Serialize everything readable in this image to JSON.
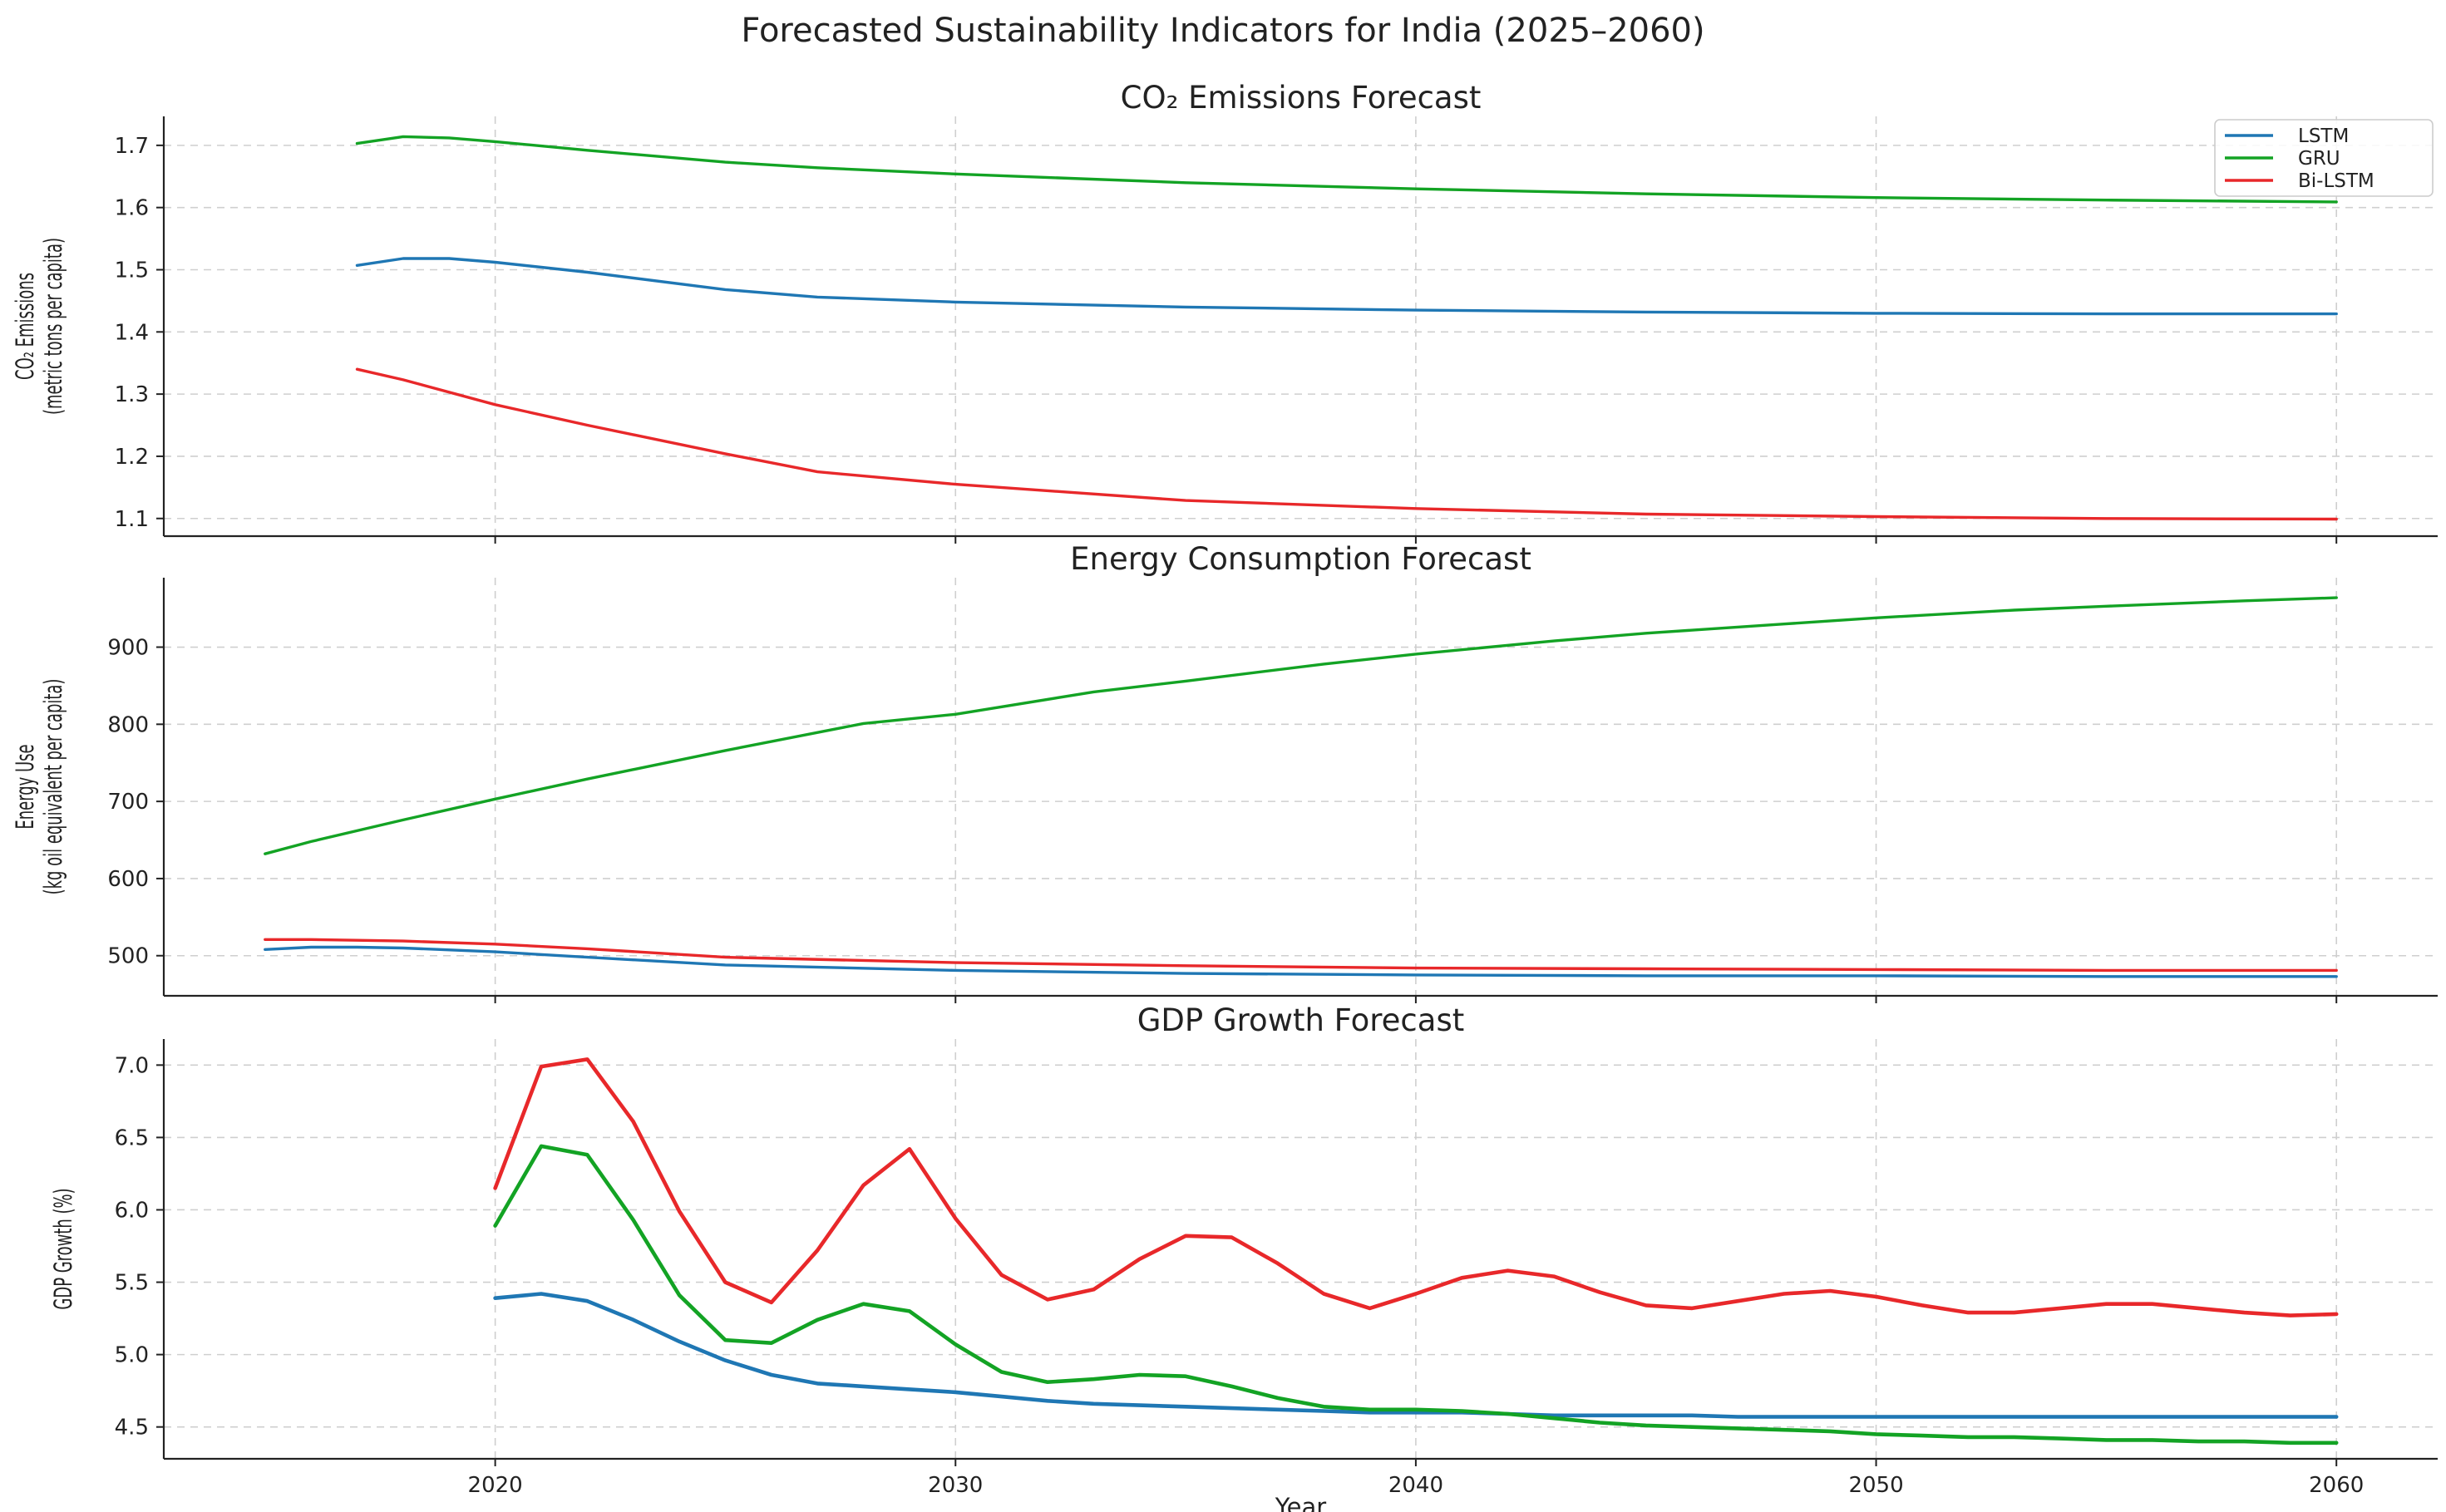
{
  "suptitle": "Forecasted Sustainability Indicators for India (2025–2060)",
  "colors": {
    "LSTM": "#1f77b4",
    "GRU": "#13a324",
    "Bi-LSTM": "#e8282a"
  },
  "chart_data": [
    {
      "type": "line",
      "title": "CO₂ Emissions Forecast",
      "ylabel": [
        "CO₂ Emissions",
        "(metric tons per capita)"
      ],
      "xlabel": "",
      "xlim": [
        2012.8,
        2062.2
      ],
      "ylim": [
        1.0716,
        1.7466
      ],
      "yticks": [
        1.1,
        1.2,
        1.3,
        1.4,
        1.5,
        1.6,
        1.7
      ],
      "ytick_labels": [
        "1.1",
        "1.2",
        "1.3",
        "1.4",
        "1.5",
        "1.6",
        "1.7"
      ],
      "xticks": [
        2020,
        2030,
        2040,
        2050,
        2060
      ],
      "xtick_labels": [
        "2020",
        "2030",
        "2040",
        "2050",
        "2060"
      ],
      "show_x_tick_labels": false,
      "grid": true,
      "legend": {
        "position": "top-right",
        "entries": [
          "LSTM",
          "GRU",
          "Bi-LSTM"
        ]
      },
      "series": [
        {
          "name": "LSTM",
          "x": [
            2017,
            2018,
            2019,
            2020,
            2022,
            2025,
            2027,
            2030,
            2035,
            2040,
            2045,
            2050,
            2055,
            2060
          ],
          "values": [
            1.507,
            1.518,
            1.518,
            1.512,
            1.496,
            1.468,
            1.456,
            1.448,
            1.44,
            1.435,
            1.432,
            1.43,
            1.429,
            1.429
          ]
        },
        {
          "name": "GRU",
          "x": [
            2017,
            2018,
            2019,
            2020,
            2022,
            2025,
            2027,
            2030,
            2035,
            2040,
            2045,
            2050,
            2055,
            2060
          ],
          "values": [
            1.703,
            1.714,
            1.712,
            1.706,
            1.692,
            1.673,
            1.664,
            1.654,
            1.64,
            1.63,
            1.622,
            1.616,
            1.612,
            1.609
          ]
        },
        {
          "name": "Bi-LSTM",
          "x": [
            2017,
            2018,
            2020,
            2022,
            2025,
            2027,
            2030,
            2035,
            2040,
            2045,
            2050,
            2055,
            2060
          ],
          "values": [
            1.34,
            1.323,
            1.283,
            1.25,
            1.204,
            1.175,
            1.155,
            1.129,
            1.116,
            1.107,
            1.103,
            1.1,
            1.099
          ]
        }
      ]
    },
    {
      "type": "line",
      "title": "Energy Consumption Forecast",
      "ylabel": [
        "Energy Use",
        "(kg oil equivalent per capita)"
      ],
      "xlabel": "",
      "xlim": [
        2012.8,
        2062.2
      ],
      "ylim": [
        448,
        990
      ],
      "yticks": [
        500,
        600,
        700,
        800,
        900
      ],
      "ytick_labels": [
        "500",
        "600",
        "700",
        "800",
        "900"
      ],
      "xticks": [
        2020,
        2030,
        2040,
        2050,
        2060
      ],
      "xtick_labels": [
        "2020",
        "2030",
        "2040",
        "2050",
        "2060"
      ],
      "show_x_tick_labels": false,
      "grid": true,
      "series": [
        {
          "name": "LSTM",
          "x": [
            2015,
            2016,
            2017,
            2018,
            2020,
            2022,
            2025,
            2030,
            2035,
            2040,
            2045,
            2050,
            2055,
            2060
          ],
          "values": [
            508,
            511,
            511,
            510,
            505,
            498,
            488,
            481,
            477,
            475,
            474,
            474,
            473,
            473
          ]
        },
        {
          "name": "GRU",
          "x": [
            2015,
            2016,
            2018,
            2020,
            2022,
            2025,
            2028,
            2030,
            2033,
            2035,
            2038,
            2040,
            2043,
            2045,
            2048,
            2050,
            2053,
            2055,
            2058,
            2060
          ],
          "values": [
            632,
            648,
            676,
            703,
            729,
            766,
            801,
            813,
            842,
            856,
            878,
            891,
            908,
            918,
            930,
            938,
            948,
            953,
            960,
            964
          ]
        },
        {
          "name": "Bi-LSTM",
          "x": [
            2015,
            2016,
            2017,
            2018,
            2020,
            2022,
            2025,
            2030,
            2035,
            2040,
            2045,
            2050,
            2055,
            2060
          ],
          "values": [
            521,
            521,
            520,
            519,
            515,
            509,
            498,
            491,
            487,
            484,
            483,
            482,
            481,
            481
          ]
        }
      ]
    },
    {
      "type": "line",
      "title": "GDP Growth Forecast",
      "ylabel": [
        "GDP Growth (%)"
      ],
      "xlabel": "Year",
      "xlim": [
        2012.8,
        2062.2
      ],
      "ylim": [
        4.28,
        7.18
      ],
      "yticks": [
        4.5,
        5.0,
        5.5,
        6.0,
        6.5,
        7.0
      ],
      "ytick_labels": [
        "4.5",
        "5.0",
        "5.5",
        "6.0",
        "6.5",
        "7.0"
      ],
      "xticks": [
        2020,
        2030,
        2040,
        2050,
        2060
      ],
      "xtick_labels": [
        "2020",
        "2030",
        "2040",
        "2050",
        "2060"
      ],
      "show_x_tick_labels": true,
      "grid": true,
      "series": [
        {
          "name": "LSTM",
          "x": [
            2020,
            2021,
            2022,
            2023,
            2024,
            2025,
            2026,
            2027,
            2028,
            2029,
            2030,
            2031,
            2032,
            2033,
            2034,
            2035,
            2036,
            2037,
            2038,
            2039,
            2040,
            2041,
            2042,
            2043,
            2044,
            2045,
            2046,
            2047,
            2048,
            2049,
            2050,
            2051,
            2052,
            2053,
            2054,
            2055,
            2056,
            2057,
            2058,
            2059,
            2060
          ],
          "values": [
            5.39,
            5.42,
            5.37,
            5.24,
            5.09,
            4.96,
            4.86,
            4.8,
            4.78,
            4.76,
            4.74,
            4.71,
            4.68,
            4.66,
            4.65,
            4.64,
            4.63,
            4.62,
            4.61,
            4.6,
            4.6,
            4.6,
            4.59,
            4.58,
            4.58,
            4.58,
            4.58,
            4.57,
            4.57,
            4.57,
            4.57,
            4.57,
            4.57,
            4.57,
            4.57,
            4.57,
            4.57,
            4.57,
            4.57,
            4.57,
            4.57
          ]
        },
        {
          "name": "GRU",
          "x": [
            2020,
            2021,
            2022,
            2023,
            2024,
            2025,
            2026,
            2027,
            2028,
            2029,
            2030,
            2031,
            2032,
            2033,
            2034,
            2035,
            2036,
            2037,
            2038,
            2039,
            2040,
            2041,
            2042,
            2043,
            2044,
            2045,
            2046,
            2047,
            2048,
            2049,
            2050,
            2051,
            2052,
            2053,
            2054,
            2055,
            2056,
            2057,
            2058,
            2059,
            2060
          ],
          "values": [
            5.89,
            6.44,
            6.38,
            5.93,
            5.41,
            5.1,
            5.08,
            5.24,
            5.35,
            5.3,
            5.07,
            4.88,
            4.81,
            4.83,
            4.86,
            4.85,
            4.78,
            4.7,
            4.64,
            4.62,
            4.62,
            4.61,
            4.59,
            4.56,
            4.53,
            4.51,
            4.5,
            4.49,
            4.48,
            4.47,
            4.45,
            4.44,
            4.43,
            4.43,
            4.42,
            4.41,
            4.41,
            4.4,
            4.4,
            4.39,
            4.39
          ]
        },
        {
          "name": "Bi-LSTM",
          "x": [
            2020,
            2021,
            2022,
            2023,
            2024,
            2025,
            2026,
            2027,
            2028,
            2029,
            2030,
            2031,
            2032,
            2033,
            2034,
            2035,
            2036,
            2037,
            2038,
            2039,
            2040,
            2041,
            2042,
            2043,
            2044,
            2045,
            2046,
            2047,
            2048,
            2049,
            2050,
            2051,
            2052,
            2053,
            2054,
            2055,
            2056,
            2057,
            2058,
            2059,
            2060
          ],
          "values": [
            6.15,
            6.99,
            7.04,
            6.61,
            5.99,
            5.5,
            5.36,
            5.72,
            6.17,
            6.42,
            5.94,
            5.55,
            5.38,
            5.45,
            5.66,
            5.82,
            5.81,
            5.63,
            5.42,
            5.32,
            5.42,
            5.53,
            5.58,
            5.54,
            5.43,
            5.34,
            5.32,
            5.37,
            5.42,
            5.44,
            5.4,
            5.34,
            5.29,
            5.29,
            5.32,
            5.35,
            5.35,
            5.32,
            5.29,
            5.27,
            5.28
          ]
        }
      ]
    }
  ]
}
